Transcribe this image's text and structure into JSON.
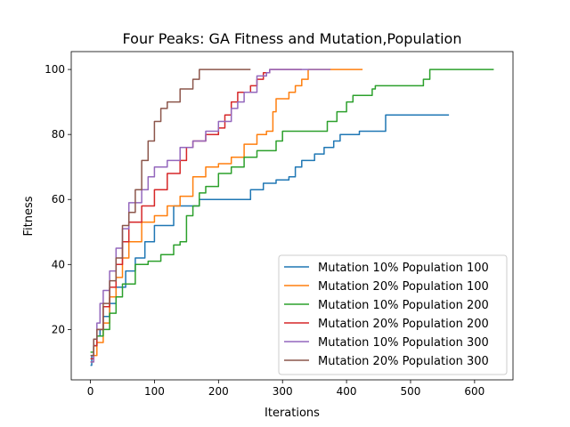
{
  "chart_data": {
    "type": "line",
    "title": "Four Peaks: GA Fitness and Mutation,Population",
    "xlabel": "Iterations",
    "ylabel": "Fitness",
    "xlim": [
      -30,
      660
    ],
    "ylim": [
      4.5,
      105.5
    ],
    "xticks": [
      0,
      100,
      200,
      300,
      400,
      500,
      600
    ],
    "yticks": [
      20,
      40,
      60,
      80,
      100
    ],
    "grid": false,
    "legend_position": "lower right",
    "series": [
      {
        "name": "Mutation 10% Population 100",
        "color": "#1f77b4",
        "points": [
          [
            0,
            9
          ],
          [
            2,
            12
          ],
          [
            5,
            15
          ],
          [
            10,
            18
          ],
          [
            15,
            20
          ],
          [
            20,
            24
          ],
          [
            30,
            28
          ],
          [
            40,
            33
          ],
          [
            55,
            38
          ],
          [
            70,
            42
          ],
          [
            85,
            47
          ],
          [
            100,
            52
          ],
          [
            130,
            58
          ],
          [
            170,
            60
          ],
          [
            230,
            60
          ],
          [
            250,
            63
          ],
          [
            270,
            65
          ],
          [
            290,
            66
          ],
          [
            310,
            67
          ],
          [
            320,
            70
          ],
          [
            330,
            72
          ],
          [
            350,
            74
          ],
          [
            365,
            76
          ],
          [
            380,
            78
          ],
          [
            390,
            80
          ],
          [
            410,
            80
          ],
          [
            420,
            81
          ],
          [
            460,
            81
          ],
          [
            461,
            86
          ],
          [
            560,
            86
          ]
        ]
      },
      {
        "name": "Mutation 20% Population 100",
        "color": "#ff7f0e",
        "points": [
          [
            0,
            10
          ],
          [
            5,
            12
          ],
          [
            10,
            16
          ],
          [
            20,
            22
          ],
          [
            30,
            30
          ],
          [
            40,
            36
          ],
          [
            50,
            42
          ],
          [
            60,
            47
          ],
          [
            80,
            53
          ],
          [
            100,
            55
          ],
          [
            120,
            58
          ],
          [
            140,
            61
          ],
          [
            160,
            67
          ],
          [
            180,
            70
          ],
          [
            200,
            71
          ],
          [
            220,
            73
          ],
          [
            240,
            77
          ],
          [
            260,
            80
          ],
          [
            275,
            81
          ],
          [
            285,
            87
          ],
          [
            290,
            91
          ],
          [
            310,
            93
          ],
          [
            320,
            95
          ],
          [
            330,
            97
          ],
          [
            340,
            100
          ],
          [
            425,
            100
          ]
        ]
      },
      {
        "name": "Mutation 10% Population 200",
        "color": "#2ca02c",
        "points": [
          [
            0,
            13
          ],
          [
            5,
            15
          ],
          [
            10,
            18
          ],
          [
            20,
            20
          ],
          [
            30,
            25
          ],
          [
            40,
            30
          ],
          [
            50,
            34
          ],
          [
            70,
            40
          ],
          [
            90,
            41
          ],
          [
            110,
            43
          ],
          [
            130,
            46
          ],
          [
            140,
            47
          ],
          [
            150,
            55
          ],
          [
            160,
            58
          ],
          [
            170,
            62
          ],
          [
            180,
            64
          ],
          [
            200,
            68
          ],
          [
            220,
            70
          ],
          [
            240,
            73
          ],
          [
            260,
            75
          ],
          [
            290,
            78
          ],
          [
            300,
            81
          ],
          [
            340,
            81
          ],
          [
            370,
            84
          ],
          [
            385,
            87
          ],
          [
            400,
            90
          ],
          [
            410,
            92
          ],
          [
            440,
            94
          ],
          [
            445,
            95
          ],
          [
            500,
            95
          ],
          [
            520,
            97
          ],
          [
            530,
            100
          ],
          [
            630,
            100
          ]
        ]
      },
      {
        "name": "Mutation 20% Population 200",
        "color": "#d62728",
        "points": [
          [
            0,
            11
          ],
          [
            5,
            15
          ],
          [
            10,
            20
          ],
          [
            20,
            27
          ],
          [
            30,
            33
          ],
          [
            40,
            40
          ],
          [
            50,
            47
          ],
          [
            60,
            53
          ],
          [
            80,
            58
          ],
          [
            100,
            63
          ],
          [
            120,
            68
          ],
          [
            140,
            72
          ],
          [
            150,
            76
          ],
          [
            160,
            78
          ],
          [
            180,
            80
          ],
          [
            200,
            82
          ],
          [
            210,
            86
          ],
          [
            220,
            90
          ],
          [
            230,
            93
          ],
          [
            250,
            95
          ],
          [
            260,
            97
          ],
          [
            270,
            99
          ],
          [
            280,
            100
          ],
          [
            330,
            100
          ]
        ]
      },
      {
        "name": "Mutation 10% Population 300",
        "color": "#9467bd",
        "points": [
          [
            0,
            10
          ],
          [
            5,
            17
          ],
          [
            10,
            22
          ],
          [
            15,
            28
          ],
          [
            20,
            32
          ],
          [
            30,
            38
          ],
          [
            40,
            45
          ],
          [
            50,
            51
          ],
          [
            60,
            59
          ],
          [
            80,
            63
          ],
          [
            90,
            67
          ],
          [
            100,
            70
          ],
          [
            120,
            72
          ],
          [
            140,
            76
          ],
          [
            160,
            78
          ],
          [
            180,
            81
          ],
          [
            200,
            84
          ],
          [
            220,
            88
          ],
          [
            230,
            90
          ],
          [
            240,
            93
          ],
          [
            260,
            98
          ],
          [
            275,
            99
          ],
          [
            280,
            100
          ],
          [
            375,
            100
          ]
        ]
      },
      {
        "name": "Mutation 20% Population 300",
        "color": "#8c564b",
        "points": [
          [
            0,
            12
          ],
          [
            5,
            17
          ],
          [
            10,
            20
          ],
          [
            20,
            28
          ],
          [
            30,
            35
          ],
          [
            40,
            42
          ],
          [
            50,
            52
          ],
          [
            60,
            56
          ],
          [
            70,
            63
          ],
          [
            80,
            72
          ],
          [
            90,
            78
          ],
          [
            100,
            84
          ],
          [
            110,
            88
          ],
          [
            120,
            90
          ],
          [
            140,
            94
          ],
          [
            160,
            97
          ],
          [
            170,
            100
          ],
          [
            250,
            100
          ]
        ]
      }
    ]
  }
}
